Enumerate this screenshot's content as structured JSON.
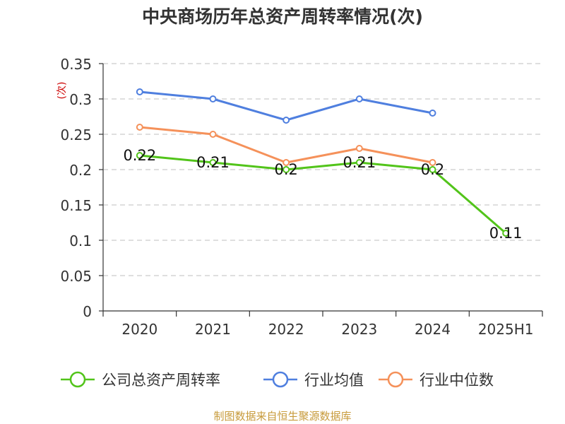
{
  "chart_data": {
    "type": "line",
    "title": "中央商场历年总资产周转率情况(次)",
    "ylabel": "(次)",
    "xlabel": "",
    "categories": [
      "2020",
      "2021",
      "2022",
      "2023",
      "2024",
      "2025H1"
    ],
    "ylim": [
      0,
      0.35
    ],
    "yticks": [
      "0",
      "0.05",
      "0.1",
      "0.15",
      "0.2",
      "0.25",
      "0.3",
      "0.35"
    ],
    "grid": true,
    "legend_position": "bottom",
    "series": [
      {
        "name": "公司总资产周转率",
        "color": "#52c41a",
        "values": [
          0.22,
          0.21,
          0.2,
          0.21,
          0.2,
          0.11
        ],
        "labels": [
          "0.22",
          "0.21",
          "0.2",
          "0.21",
          "0.2",
          "0.11"
        ]
      },
      {
        "name": "行业均值",
        "color": "#4f7fdf",
        "values": [
          0.31,
          0.3,
          0.27,
          0.3,
          0.28,
          null
        ]
      },
      {
        "name": "行业中位数",
        "color": "#f5915a",
        "values": [
          0.26,
          0.25,
          0.21,
          0.23,
          0.21,
          null
        ]
      }
    ],
    "source": "制图数据来自恒生聚源数据库"
  }
}
